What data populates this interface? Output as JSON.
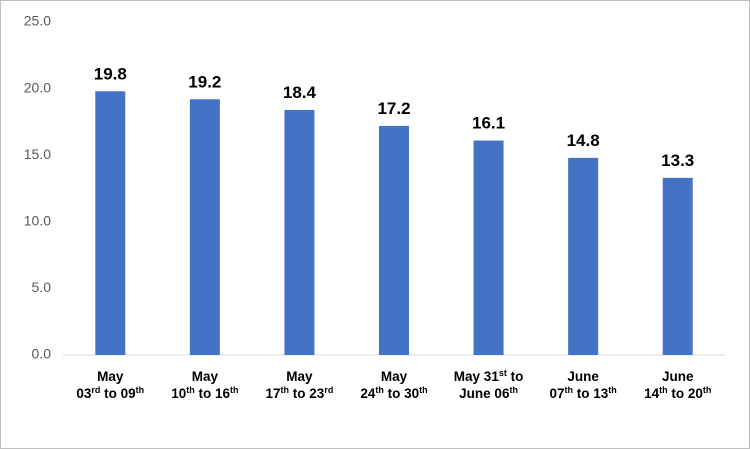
{
  "chart_data": {
    "type": "bar",
    "categories": [
      "May\n03rd to 09th",
      "May\n10th to 16th",
      "May\n17th to 23rd",
      "May\n24th to 30th",
      "May 31st to\nJune 06th",
      "June\n07th to 13th",
      "June\n14th to 20th"
    ],
    "values": [
      19.8,
      19.2,
      18.4,
      17.2,
      16.1,
      14.8,
      13.3
    ],
    "color": "#4472c4",
    "ylim": [
      0,
      25
    ],
    "yticks": [
      {
        "value": 0,
        "label": "0.0"
      },
      {
        "value": 5,
        "label": "5.0"
      },
      {
        "value": 10,
        "label": "10.0"
      },
      {
        "value": 15,
        "label": "15.0"
      },
      {
        "value": 20,
        "label": "20.0"
      },
      {
        "value": 25,
        "label": "25.0"
      }
    ],
    "grid": false
  }
}
